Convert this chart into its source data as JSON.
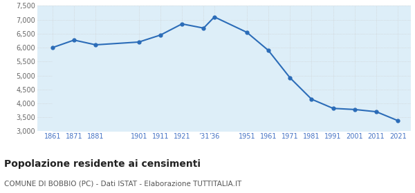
{
  "years": [
    1861,
    1871,
    1881,
    1901,
    1911,
    1921,
    1931,
    1936,
    1951,
    1961,
    1971,
    1981,
    1991,
    2001,
    2011,
    2021
  ],
  "population": [
    6000,
    6270,
    6100,
    6200,
    6450,
    6850,
    6700,
    7100,
    6550,
    5900,
    4920,
    4150,
    3820,
    3780,
    3700,
    3380
  ],
  "line_color": "#2b6cb8",
  "fill_color": "#ddeef8",
  "marker_color": "#2b6cb8",
  "background_color": "#ffffff",
  "grid_color": "#cccccc",
  "ylim": [
    3000,
    7500
  ],
  "yticks": [
    3000,
    3500,
    4000,
    4500,
    5000,
    5500,
    6000,
    6500,
    7000,
    7500
  ],
  "xtick_positions": [
    1861,
    1871,
    1881,
    1901,
    1911,
    1921,
    1931,
    1936,
    1951,
    1961,
    1971,
    1981,
    1991,
    2001,
    2011,
    2021
  ],
  "xtick_labels": [
    "1861",
    "1871",
    "1881",
    "1901",
    "1911",
    "1921",
    "’31",
    "’36",
    "1951",
    "1961",
    "1971",
    "1981",
    "1991",
    "2001",
    "2011",
    "2021"
  ],
  "xtick_color": "#4472c4",
  "title": "Popolazione residente ai censimenti",
  "subtitle": "COMUNE DI BOBBIO (PC) - Dati ISTAT - Elaborazione TUTTITALIA.IT",
  "title_fontsize": 10,
  "subtitle_fontsize": 7.5
}
